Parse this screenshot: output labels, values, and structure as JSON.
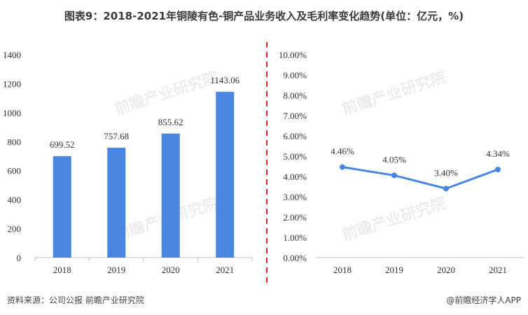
{
  "title": "图表9：2018-2021年铜陵有色-铜产品业务收入及毛利率变化趋势(单位：亿元，%)",
  "footer": {
    "source": "资料来源：公司公报 前瞻产业研究院",
    "brand": "@前瞻经济学人APP"
  },
  "watermark": "前瞻产业研究院",
  "colors": {
    "bar": "#4a86e0",
    "line": "#4a86e0",
    "divider": "#d9282f"
  },
  "chart_data": [
    {
      "type": "bar",
      "title": "铜产品业务收入",
      "unit": "亿元",
      "categories": [
        "2018",
        "2019",
        "2020",
        "2021"
      ],
      "values": [
        699.52,
        757.68,
        855.62,
        1143.06
      ],
      "value_labels": [
        "699.52",
        "757.68",
        "855.62",
        "1143.06"
      ],
      "ylim": [
        0,
        1400
      ],
      "yticks": [
        0,
        200,
        400,
        600,
        800,
        1000,
        1200,
        1400
      ],
      "grid": false
    },
    {
      "type": "line",
      "title": "毛利率",
      "unit": "%",
      "categories": [
        "2018",
        "2019",
        "2020",
        "2021"
      ],
      "values": [
        4.46,
        4.05,
        3.4,
        4.34
      ],
      "value_labels": [
        "4.46%",
        "4.05%",
        "3.40%",
        "4.34%"
      ],
      "ylim": [
        0,
        10
      ],
      "yticks": [
        "0.00%",
        "1.00%",
        "2.00%",
        "3.00%",
        "4.00%",
        "5.00%",
        "6.00%",
        "7.00%",
        "8.00%",
        "9.00%",
        "10.00%"
      ],
      "grid": false
    }
  ]
}
